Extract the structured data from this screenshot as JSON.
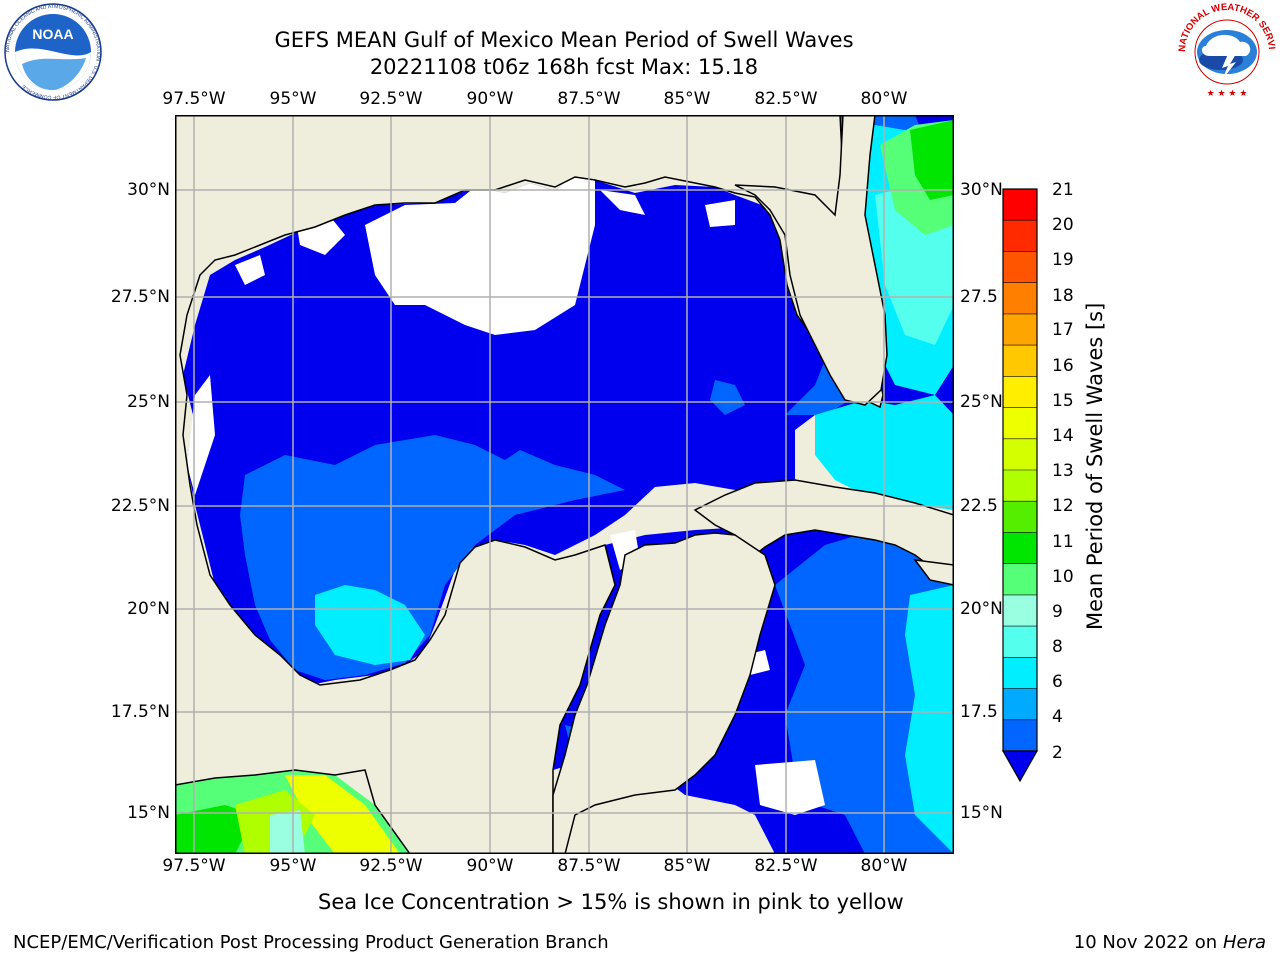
{
  "header": {
    "title_line1": "GEFS MEAN Gulf of Mexico Mean Period of Swell Waves",
    "title_line2": "20221108 t06z 168h fcst   Max: 15.18"
  },
  "logos": {
    "left": {
      "name": "noaa-logo",
      "text": "NOAA",
      "ring_text": "NATIONAL OCEANIC AND ATMOSPHERIC ADMINISTRATION · U.S. DEPARTMENT OF COMMERCE"
    },
    "right": {
      "name": "nws-logo",
      "ring_text": "NATIONAL WEATHER SERVICE"
    }
  },
  "map": {
    "lon_labels": [
      "97.5°W",
      "95°W",
      "92.5°W",
      "90°W",
      "87.5°W",
      "85°W",
      "82.5°W",
      "80°W"
    ],
    "lat_labels_left": [
      "30°N",
      "27.5°N",
      "25°N",
      "22.5°N",
      "20°N",
      "17.5°N",
      "15°N"
    ],
    "lat_labels_right": [
      "30°N",
      "27.5",
      "25°N",
      "22.5",
      "20°N",
      "17.5",
      "15°N"
    ],
    "lon_range": [
      -98,
      -78.2
    ],
    "lat_range": [
      14,
      31.6
    ],
    "land_color": "#efeddc",
    "grid_color": "#b0b0b0"
  },
  "colorbar": {
    "label": "Mean Period of Swell Waves [s]",
    "ticks": [
      "21",
      "20",
      "19",
      "18",
      "17",
      "16",
      "15",
      "14",
      "13",
      "12",
      "11",
      "10",
      "9",
      "8",
      "6",
      "4",
      "2"
    ],
    "colors_top_to_bottom": [
      "#ff0000",
      "#ff2a00",
      "#ff5500",
      "#ff7f00",
      "#ffa500",
      "#ffc800",
      "#ffee00",
      "#eeff00",
      "#d4ff00",
      "#b0ff00",
      "#55ee00",
      "#00e600",
      "#55ff77",
      "#99ffe0",
      "#55ffee",
      "#00eeff",
      "#00aaff",
      "#0066ff"
    ],
    "under_color": "#0000ee"
  },
  "footer": {
    "ice_note": "Sea Ice Concentration > 15% is shown in pink to yellow",
    "credit": "NCEP/EMC/Verification Post Processing Product Generation Branch",
    "date": "10 Nov 2022 on",
    "machine": "Hera"
  }
}
